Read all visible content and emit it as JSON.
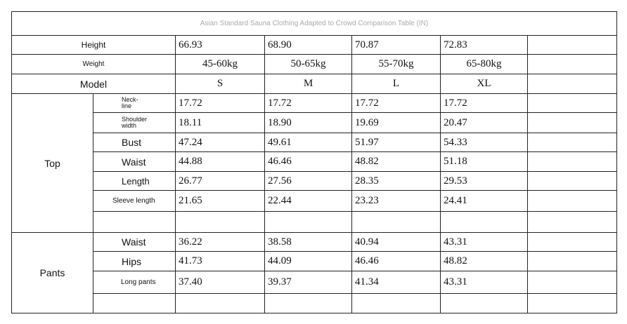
{
  "title": "Asian Standard Sauna Clothing Adapted to Crowd Comparison Table (IN)",
  "header_rows": [
    {
      "label": "Height",
      "values": [
        "66.93",
        "68.90",
        "70.87",
        "72.83"
      ]
    },
    {
      "label": "Weight",
      "values": [
        "45-60kg",
        "50-65kg",
        "55-70kg",
        "65-80kg"
      ]
    },
    {
      "label": "Model",
      "values": [
        "S",
        "M",
        "L",
        "XL"
      ]
    }
  ],
  "groups": [
    {
      "label": "Top",
      "rows": [
        {
          "label": "Neck-line",
          "values": [
            "17.72",
            "17.72",
            "17.72",
            "17.72"
          ]
        },
        {
          "label": "Shoulder width",
          "values": [
            "18.11",
            "18.90",
            "19.69",
            "20.47"
          ]
        },
        {
          "label": "Bust",
          "values": [
            "47.24",
            "49.61",
            "51.97",
            "54.33"
          ]
        },
        {
          "label": "Waist",
          "values": [
            "44.88",
            "46.46",
            "48.82",
            "51.18"
          ]
        },
        {
          "label": "Length",
          "values": [
            "26.77",
            "27.56",
            "28.35",
            "29.53"
          ]
        },
        {
          "label": "Sleeve length",
          "values": [
            "21.65",
            "22.44",
            "23.23",
            "24.41"
          ]
        }
      ]
    },
    {
      "label": "Pants",
      "rows": [
        {
          "label": "Waist",
          "values": [
            "36.22",
            "38.58",
            "40.94",
            "43.31"
          ]
        },
        {
          "label": "Hips",
          "values": [
            "41.73",
            "44.09",
            "46.46",
            "48.82"
          ]
        },
        {
          "label": "Long pants",
          "values": [
            "37.40",
            "39.37",
            "41.34",
            "43.31"
          ]
        }
      ]
    }
  ]
}
